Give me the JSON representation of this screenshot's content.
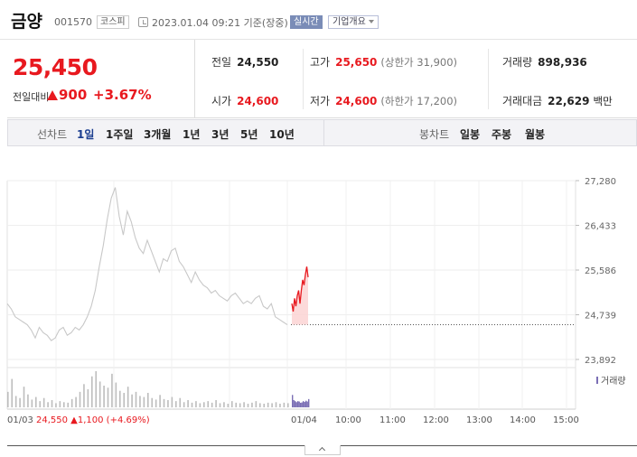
{
  "header": {
    "stock_name": "금양",
    "stock_code": "001570",
    "market": "코스피",
    "datetime": "2023.01.04 09:21 기준(장중)",
    "realtime_label": "실시간",
    "company_overview_label": "기업개요"
  },
  "quote": {
    "price": "25,450",
    "change_label": "전일대비",
    "change_value": "900",
    "change_pct": "+3.67%",
    "prev_close_label": "전일",
    "prev_close": "24,550",
    "open_label": "시가",
    "open": "24,600",
    "high_label": "고가",
    "high": "25,650",
    "upper_limit": "(상한가 31,900)",
    "low_label": "저가",
    "low": "24,600",
    "lower_limit": "(하한가 17,200)",
    "volume_label": "거래량",
    "volume": "898,936",
    "amount_label": "거래대금",
    "amount": "22,629",
    "amount_unit": "백만"
  },
  "tabs": {
    "line_chart_label": "선차트",
    "periods": [
      "1일",
      "1주일",
      "3개월",
      "1년",
      "3년",
      "5년",
      "10년"
    ],
    "active_period": "1일",
    "candle_chart_label": "봉차트",
    "candle_periods": [
      "일봉",
      "주봉",
      "월봉"
    ]
  },
  "chart_data": {
    "type": "line",
    "y_ticks": [
      "27,280",
      "26,433",
      "25,586",
      "24,739",
      "23,892"
    ],
    "ylim": [
      23892,
      27280
    ],
    "x_tick_labels": [
      "01/03",
      "01/04",
      "10:00",
      "11:00",
      "12:00",
      "13:00",
      "14:00",
      "15:00"
    ],
    "prev_day_summary": {
      "date": "01/03",
      "close": "24,550",
      "change": "1,100",
      "change_pct": "(+4.69%)"
    },
    "volume_legend": "거래량",
    "reference_price": 24550,
    "prev_day_series": [
      24950,
      24850,
      24700,
      24650,
      24600,
      24550,
      24450,
      24300,
      24500,
      24400,
      24350,
      24250,
      24300,
      24450,
      24500,
      24350,
      24400,
      24500,
      24450,
      24550,
      24700,
      24900,
      25200,
      25650,
      26050,
      26550,
      26950,
      27150,
      26600,
      26250,
      26700,
      26500,
      26200,
      26000,
      25900,
      26150,
      25950,
      25750,
      25550,
      25800,
      25750,
      25950,
      26000,
      25750,
      25650,
      25500,
      25350,
      25550,
      25400,
      25300,
      25250,
      25150,
      25200,
      25100,
      25050,
      25000,
      25100,
      25150,
      25050,
      24950,
      25000,
      24950,
      25050,
      25100,
      24900,
      24850,
      24950,
      24700,
      24650,
      24600,
      24550
    ],
    "today_series": [
      24950,
      24800,
      25050,
      24900,
      25100,
      25200,
      24950,
      25200,
      25400,
      25300,
      25500,
      25650,
      25450
    ],
    "prev_day_volume": [
      30,
      55,
      22,
      18,
      40,
      25,
      15,
      20,
      12,
      18,
      10,
      14,
      8,
      12,
      10,
      9,
      16,
      20,
      30,
      45,
      35,
      60,
      70,
      50,
      42,
      38,
      65,
      48,
      32,
      28,
      40,
      25,
      30,
      22,
      20,
      28,
      18,
      15,
      24,
      16,
      14,
      20,
      12,
      18,
      10,
      14,
      9,
      12,
      8,
      10,
      12,
      9,
      14,
      8,
      10,
      7,
      12,
      9,
      8,
      10,
      7,
      9,
      12,
      8,
      7,
      9,
      8,
      10,
      7,
      9,
      8
    ],
    "today_volume": [
      60,
      35,
      30,
      25,
      30,
      28,
      22,
      24,
      30,
      26,
      32,
      28,
      40
    ]
  }
}
